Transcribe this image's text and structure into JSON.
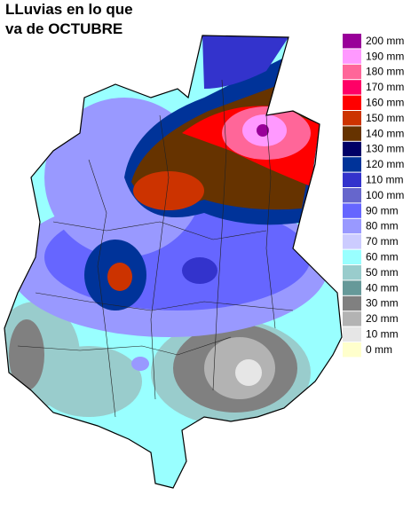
{
  "title": {
    "lines": [
      "LLuvias en lo que",
      "va de OCTUBRE"
    ]
  },
  "legend": {
    "items": [
      {
        "label": "200 mm",
        "color": "#990099"
      },
      {
        "label": "190 mm",
        "color": "#ff99ff"
      },
      {
        "label": "180 mm",
        "color": "#ff6699"
      },
      {
        "label": "170 mm",
        "color": "#ff0066"
      },
      {
        "label": "160 mm",
        "color": "#ff0000"
      },
      {
        "label": "150 mm",
        "color": "#cc3300"
      },
      {
        "label": "140 mm",
        "color": "#663300"
      },
      {
        "label": "130 mm",
        "color": "#000066"
      },
      {
        "label": "120 mm",
        "color": "#003399"
      },
      {
        "label": "110 mm",
        "color": "#3333cc"
      },
      {
        "label": "100 mm",
        "color": "#6666cc"
      },
      {
        "label": "90 mm",
        "color": "#6666ff"
      },
      {
        "label": "80 mm",
        "color": "#9999ff"
      },
      {
        "label": "70 mm",
        "color": "#ccccff"
      },
      {
        "label": "60 mm",
        "color": "#99ffff"
      },
      {
        "label": "50 mm",
        "color": "#99cccc"
      },
      {
        "label": "40 mm",
        "color": "#669999"
      },
      {
        "label": "30 mm",
        "color": "#808080"
      },
      {
        "label": "20 mm",
        "color": "#b3b3b3"
      },
      {
        "label": "10 mm",
        "color": "#e6e6e6"
      },
      {
        "label": "0 mm",
        "color": "#ffffcc"
      }
    ]
  }
}
